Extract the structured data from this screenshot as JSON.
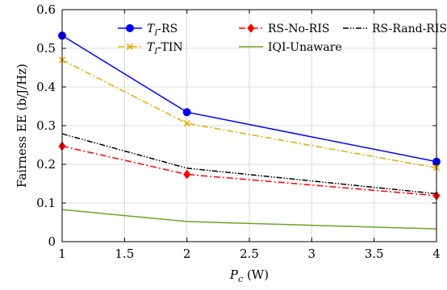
{
  "chart_data": {
    "type": "line",
    "xlabel_main": "P",
    "xlabel_sub": "c",
    "xlabel_unit": " (W)",
    "ylabel": "Fairness EE (b/J/Hz)",
    "xlim": [
      1,
      4
    ],
    "ylim": [
      0,
      0.6
    ],
    "xticks": [
      "1",
      "1.5",
      "2",
      "2.5",
      "3",
      "3.5",
      "4"
    ],
    "yticks": [
      "0",
      "0.1",
      "0.2",
      "0.3",
      "0.4",
      "0.5",
      "0.6"
    ],
    "grid": true,
    "legend_placement": "top",
    "x": [
      1,
      2,
      4
    ],
    "series": [
      {
        "name_main": "T",
        "name_sub": "I",
        "name_rest": "-RS",
        "color": "#0000ff",
        "style": "solid",
        "marker": "circle",
        "values": [
          0.533,
          0.335,
          0.207
        ]
      },
      {
        "name": "RS-No-RIS",
        "color": "#ff0000",
        "style": "dashdot",
        "marker": "diamond",
        "values": [
          0.247,
          0.174,
          0.119
        ]
      },
      {
        "name": "RS-Rand-RIS",
        "color": "#000000",
        "style": "dashdotdot",
        "marker": "none",
        "values": [
          0.279,
          0.19,
          0.124
        ]
      },
      {
        "name_main": "T",
        "name_sub": "I",
        "name_rest": "-TIN",
        "color": "#e6ab02",
        "style": "dashdot",
        "marker": "x",
        "values": [
          0.47,
          0.306,
          0.191
        ]
      },
      {
        "name": "IQI-Unaware",
        "color": "#66a61e",
        "style": "solid",
        "marker": "none",
        "values": [
          0.083,
          0.052,
          0.033
        ]
      }
    ]
  }
}
